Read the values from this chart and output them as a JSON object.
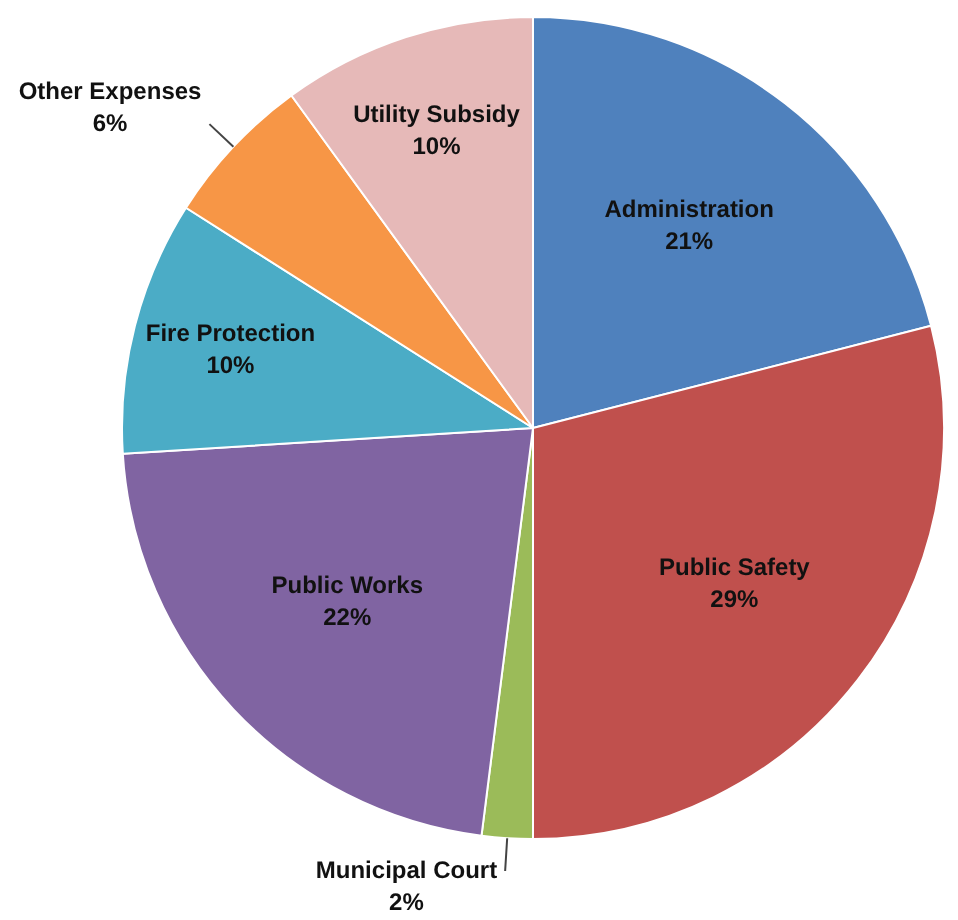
{
  "chart_data": {
    "type": "pie",
    "categories": [
      "Administration",
      "Public Safety",
      "Municipal Court",
      "Public Works",
      "Fire Protection",
      "Other Expenses",
      "Utility Subsidy"
    ],
    "values": [
      21,
      29,
      2,
      22,
      10,
      6,
      10
    ],
    "value_labels": [
      "21%",
      "29%",
      "2%",
      "22%",
      "10%",
      "6%",
      "10%"
    ],
    "colors": [
      "#4f81bd",
      "#c0504d",
      "#9bbb59",
      "#8064a2",
      "#4bacc6",
      "#f79646",
      "#e6b9b8"
    ],
    "legend": false
  }
}
